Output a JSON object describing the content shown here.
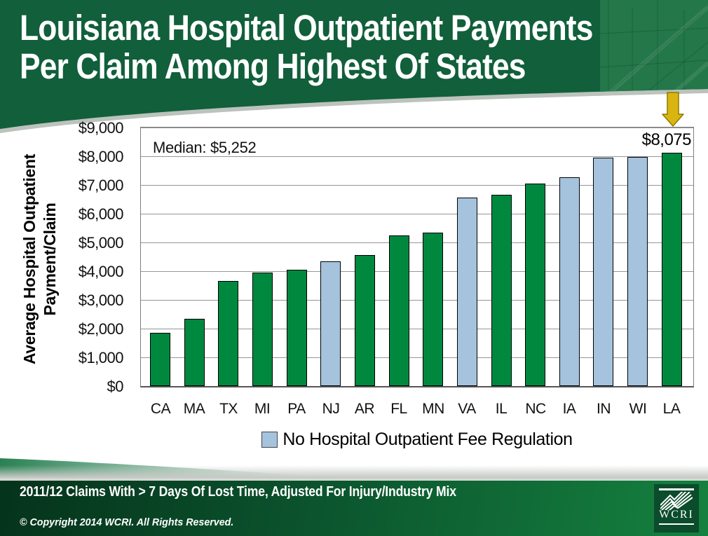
{
  "slide": {
    "title_line1": "Louisiana Hospital Outpatient Payments",
    "title_line2": "Per Claim Among Highest Of States",
    "footnote": "2011/12 Claims With > 7 Days Of Lost Time, Adjusted For Injury/Industry Mix",
    "copyright": "© Copyright 2014 WCRI. All Rights Reserved.",
    "logo_text": "WCRI"
  },
  "colors": {
    "header_green": "#115F3B",
    "panel_green": "#237749",
    "bar_green": "#00883F",
    "bar_blue": "#A6C3DD",
    "gridline": "#969696",
    "plot_border": "#7F7F7F",
    "footer_dark": "#05331B",
    "footer_light": "#15813F",
    "gold": "#D9B511",
    "gold_border": "#8F7B00",
    "logo_bg": "#0A4C2B"
  },
  "chart_data": {
    "type": "bar",
    "title": "",
    "ylabel_line1": "Average Hospital Outpatient",
    "ylabel_line2": "Payment/Claim",
    "categories": [
      "CA",
      "MA",
      "TX",
      "MI",
      "PA",
      "NJ",
      "AR",
      "FL",
      "MN",
      "VA",
      "IL",
      "NC",
      "IA",
      "IN",
      "WI",
      "LA"
    ],
    "values": [
      1800,
      2300,
      3600,
      3900,
      4000,
      4300,
      4500,
      5200,
      5300,
      6500,
      6600,
      7000,
      7230,
      7900,
      7920,
      8075
    ],
    "no_fee_regulation": [
      "NJ",
      "VA",
      "IA",
      "IN",
      "WI"
    ],
    "ylim": [
      0,
      9000
    ],
    "ytick_step": 1000,
    "yticks": [
      "$9,000",
      "$8,000",
      "$7,000",
      "$6,000",
      "$5,000",
      "$4,000",
      "$3,000",
      "$2,000",
      "$1,000",
      "$0"
    ],
    "median": 5252,
    "annotations": {
      "median_label": "Median: $5,252",
      "max_label": "$8,075"
    },
    "legend": [
      {
        "label": "No Hospital Outpatient Fee Regulation",
        "color": "#A6C3DD"
      }
    ],
    "legend_position": "bottom",
    "grid": true
  }
}
